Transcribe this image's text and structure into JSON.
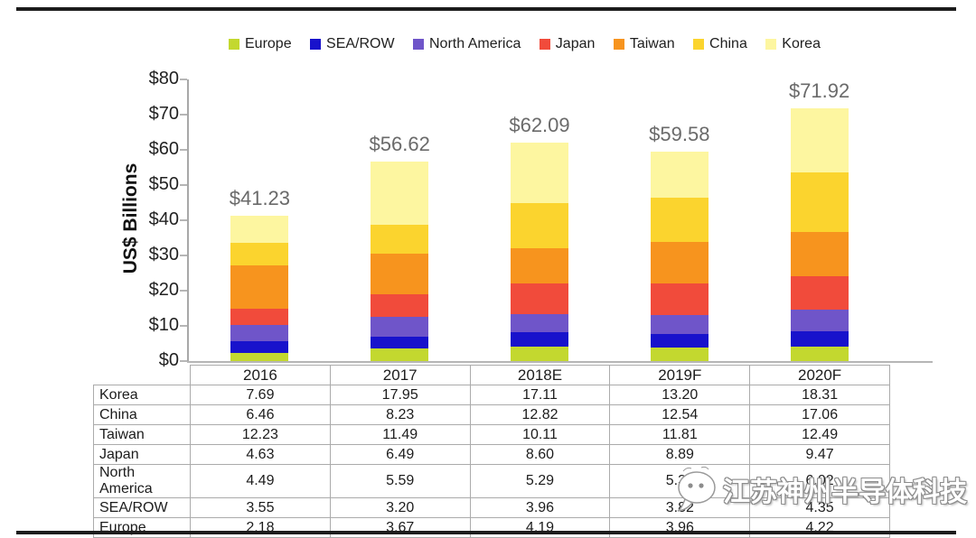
{
  "watermark": {
    "text": "江苏神州半导体科技"
  },
  "chart_data": {
    "type": "bar",
    "stacked": true,
    "title": "",
    "xlabel": "",
    "ylabel": "US$ Billions",
    "ylim": [
      0,
      80
    ],
    "ytick_step": 10,
    "ytick_labels": [
      "$0",
      "$10",
      "$20",
      "$30",
      "$40",
      "$50",
      "$60",
      "$70",
      "$80"
    ],
    "grid": false,
    "legend_position": "top",
    "categories": [
      "2016",
      "2017",
      "2018E",
      "2019F",
      "2020F"
    ],
    "totals": [
      41.23,
      56.62,
      62.09,
      59.58,
      71.92
    ],
    "totals_labels": [
      "$41.23",
      "$56.62",
      "$62.09",
      "$59.58",
      "$71.92"
    ],
    "series": [
      {
        "name": "Europe",
        "color": "#c3d82f",
        "values": [
          2.18,
          3.67,
          4.19,
          3.96,
          4.22
        ]
      },
      {
        "name": "SEA/ROW",
        "color": "#1812cc",
        "values": [
          3.55,
          3.2,
          3.96,
          3.82,
          4.35
        ]
      },
      {
        "name": "North America",
        "color": "#6f55c9",
        "values": [
          4.49,
          5.59,
          5.29,
          5.36,
          6.02
        ]
      },
      {
        "name": "Japan",
        "color": "#f14b3b",
        "values": [
          4.63,
          6.49,
          8.6,
          8.89,
          9.47
        ]
      },
      {
        "name": "Taiwan",
        "color": "#f7941e",
        "values": [
          12.23,
          11.49,
          10.11,
          11.81,
          12.49
        ]
      },
      {
        "name": "China",
        "color": "#fbd42e",
        "values": [
          6.46,
          8.23,
          12.82,
          12.54,
          17.06
        ]
      },
      {
        "name": "Korea",
        "color": "#fdf6a0",
        "values": [
          7.69,
          17.95,
          17.11,
          13.2,
          18.31
        ]
      }
    ],
    "table": {
      "rows": [
        {
          "label": "Korea",
          "values": [
            "7.69",
            "17.95",
            "17.11",
            "13.20",
            "18.31"
          ]
        },
        {
          "label": "China",
          "values": [
            "6.46",
            "8.23",
            "12.82",
            "12.54",
            "17.06"
          ]
        },
        {
          "label": "Taiwan",
          "values": [
            "12.23",
            "11.49",
            "10.11",
            "11.81",
            "12.49"
          ]
        },
        {
          "label": "Japan",
          "values": [
            "4.63",
            "6.49",
            "8.60",
            "8.89",
            "9.47"
          ]
        },
        {
          "label": "North America",
          "values": [
            "4.49",
            "5.59",
            "5.29",
            "5.36",
            "6.02"
          ]
        },
        {
          "label": "SEA/ROW",
          "values": [
            "3.55",
            "3.20",
            "3.96",
            "3.82",
            "4.35"
          ]
        },
        {
          "label": "Europe",
          "values": [
            "2.18",
            "3.67",
            "4.19",
            "3.96",
            "4.22"
          ]
        }
      ]
    }
  }
}
